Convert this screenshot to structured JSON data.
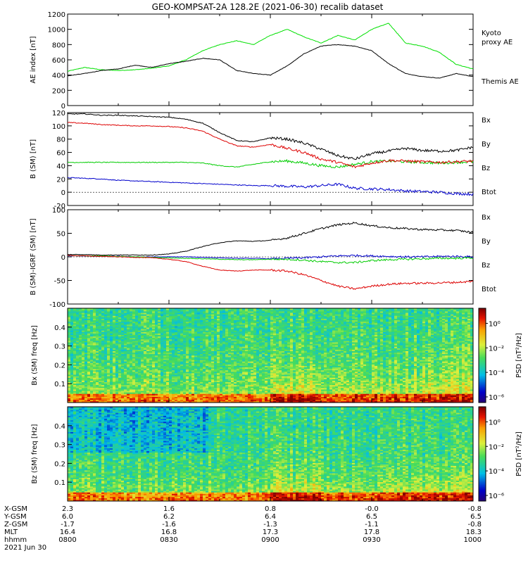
{
  "title": "GEO-KOMPSAT-2A 128.2E (2021-06-30) recalib dataset",
  "chart_data": [
    {
      "type": "line",
      "ylabel": "AE index [nT]",
      "ylim": [
        0,
        1200
      ],
      "yticks": [
        0,
        200,
        400,
        600,
        800,
        1000,
        1200
      ],
      "x": [
        "08:00",
        "08:05",
        "08:10",
        "08:15",
        "08:20",
        "08:25",
        "08:30",
        "08:35",
        "08:40",
        "08:45",
        "08:50",
        "08:55",
        "09:00",
        "09:05",
        "09:10",
        "09:15",
        "09:20",
        "09:25",
        "09:30",
        "09:35",
        "09:40",
        "09:45",
        "09:50",
        "09:55",
        "10:00"
      ],
      "series": [
        {
          "name": "Kyoto proxy AE",
          "color": "#00e000",
          "values": [
            450,
            500,
            470,
            460,
            470,
            490,
            520,
            600,
            720,
            800,
            850,
            800,
            920,
            1000,
            900,
            820,
            920,
            860,
            1000,
            1080,
            820,
            780,
            700,
            540,
            480
          ]
        },
        {
          "name": "Themis AE",
          "color": "#000000",
          "values": [
            390,
            420,
            460,
            480,
            530,
            500,
            550,
            580,
            620,
            600,
            460,
            420,
            400,
            520,
            680,
            780,
            800,
            780,
            720,
            550,
            420,
            380,
            360,
            420,
            380
          ]
        }
      ]
    },
    {
      "type": "line",
      "ylabel": "B (SM) [nT]",
      "ylim": [
        -20,
        120
      ],
      "yticks": [
        -20,
        0,
        20,
        40,
        60,
        80,
        100,
        120
      ],
      "x": [
        "08:00",
        "08:05",
        "08:10",
        "08:15",
        "08:20",
        "08:25",
        "08:30",
        "08:35",
        "08:40",
        "08:45",
        "08:50",
        "08:55",
        "09:00",
        "09:05",
        "09:10",
        "09:15",
        "09:20",
        "09:25",
        "09:30",
        "09:35",
        "09:40",
        "09:45",
        "09:50",
        "09:55",
        "10:00"
      ],
      "series": [
        {
          "name": "Bx",
          "color": "#0000cc",
          "values": [
            22,
            21,
            20,
            18,
            17,
            16,
            15,
            14,
            13,
            12,
            11,
            10,
            10,
            9,
            8,
            10,
            12,
            6,
            5,
            4,
            2,
            1,
            0,
            -2,
            -3
          ]
        },
        {
          "name": "By",
          "color": "#00cc00",
          "values": [
            45,
            45,
            45,
            45,
            45,
            45,
            45,
            45,
            44,
            40,
            38,
            42,
            46,
            47,
            44,
            40,
            38,
            42,
            46,
            47,
            46,
            45,
            44,
            45,
            46
          ]
        },
        {
          "name": "Bz",
          "color": "#dd0000",
          "values": [
            105,
            104,
            102,
            101,
            100,
            100,
            99,
            97,
            92,
            80,
            70,
            68,
            72,
            66,
            60,
            50,
            45,
            38,
            44,
            48,
            47,
            46,
            45,
            46,
            47
          ]
        },
        {
          "name": "Btot",
          "color": "#000000",
          "values": [
            118,
            118,
            116,
            116,
            115,
            114,
            113,
            110,
            104,
            90,
            78,
            76,
            82,
            80,
            74,
            65,
            55,
            50,
            58,
            62,
            66,
            63,
            62,
            63,
            68
          ]
        }
      ]
    },
    {
      "type": "line",
      "ylabel": "B (SM)-IGRF (SM) [nT]",
      "ylim": [
        -100,
        100
      ],
      "yticks": [
        -100,
        -50,
        0,
        50,
        100
      ],
      "x": [
        "08:00",
        "08:05",
        "08:10",
        "08:15",
        "08:20",
        "08:25",
        "08:30",
        "08:35",
        "08:40",
        "08:45",
        "08:50",
        "08:55",
        "09:00",
        "09:05",
        "09:10",
        "09:15",
        "09:20",
        "09:25",
        "09:30",
        "09:35",
        "09:40",
        "09:45",
        "09:50",
        "09:55",
        "10:00"
      ],
      "series": [
        {
          "name": "Bx",
          "color": "#0000cc",
          "values": [
            2,
            2,
            1,
            1,
            0,
            0,
            0,
            0,
            -1,
            -2,
            -3,
            -3,
            -4,
            -3,
            -2,
            0,
            2,
            3,
            2,
            1,
            0,
            0,
            1,
            1,
            0
          ]
        },
        {
          "name": "By",
          "color": "#00cc00",
          "values": [
            3,
            2,
            2,
            1,
            0,
            -1,
            -2,
            -3,
            -4,
            -5,
            -6,
            -6,
            -5,
            -5,
            -7,
            -10,
            -12,
            -12,
            -8,
            -6,
            -5,
            -4,
            -3,
            -3,
            -2
          ]
        },
        {
          "name": "Bz",
          "color": "#dd0000",
          "values": [
            3,
            2,
            1,
            0,
            -1,
            -2,
            -5,
            -10,
            -20,
            -28,
            -30,
            -28,
            -28,
            -30,
            -38,
            -50,
            -62,
            -68,
            -62,
            -58,
            -56,
            -56,
            -55,
            -54,
            -52
          ]
        },
        {
          "name": "Btot",
          "color": "#000000",
          "values": [
            5,
            5,
            4,
            4,
            4,
            4,
            6,
            12,
            22,
            30,
            34,
            33,
            35,
            40,
            50,
            60,
            68,
            72,
            66,
            62,
            60,
            58,
            57,
            56,
            52
          ]
        }
      ]
    },
    {
      "type": "heatmap",
      "ylabel": "Bx (SM) freq [Hz]",
      "yticks": [
        0.1,
        0.2,
        0.3,
        0.4
      ],
      "ylim": [
        0,
        0.5
      ],
      "colorbar_label": "PSD [nT²/Hz]",
      "colorbar_ticks": [
        "10⁰",
        "10⁻²",
        "10⁻⁴",
        "10⁻⁶"
      ]
    },
    {
      "type": "heatmap",
      "ylabel": "Bz (SM) freq [Hz]",
      "yticks": [
        0.1,
        0.2,
        0.3,
        0.4
      ],
      "ylim": [
        0,
        0.5
      ],
      "colorbar_label": "PSD [nT²/Hz]",
      "colorbar_ticks": [
        "10⁰",
        "10⁻²",
        "10⁻⁴",
        "10⁻⁶"
      ]
    }
  ],
  "ephemeris": {
    "row_labels": [
      "X-GSM",
      "Y-GSM",
      "Z-GSM",
      "MLT",
      "hhmm"
    ],
    "columns": [
      [
        "2.3",
        "6.0",
        "-1.7",
        "16.4",
        "0800"
      ],
      [
        "1.6",
        "6.2",
        "-1.6",
        "16.8",
        "0830"
      ],
      [
        "0.8",
        "6.4",
        "-1.3",
        "17.3",
        "0900"
      ],
      [
        "-0.0",
        "6.5",
        "-1.1",
        "17.8",
        "0930"
      ],
      [
        "-0.8",
        "6.5",
        "-0.8",
        "18.3",
        "1000"
      ]
    ],
    "date": "2021 Jun 30"
  },
  "legends": {
    "panel1": [
      {
        "text": "Kyoto",
        "color": "#00cc00"
      },
      {
        "text": "proxy AE",
        "color": "#00cc00"
      },
      {
        "text": "Themis AE",
        "color": "#000000"
      }
    ],
    "panel2": [
      {
        "text": "Bx",
        "color": "#0000cc"
      },
      {
        "text": "By",
        "color": "#00cc00"
      },
      {
        "text": "Bz",
        "color": "#dd0000"
      },
      {
        "text": "Btot",
        "color": "#000000"
      }
    ],
    "panel3": [
      {
        "text": "Bx",
        "color": "#0000cc"
      },
      {
        "text": "By",
        "color": "#00cc00"
      },
      {
        "text": "Bz",
        "color": "#dd0000"
      },
      {
        "text": "Btot",
        "color": "#000000"
      }
    ]
  }
}
